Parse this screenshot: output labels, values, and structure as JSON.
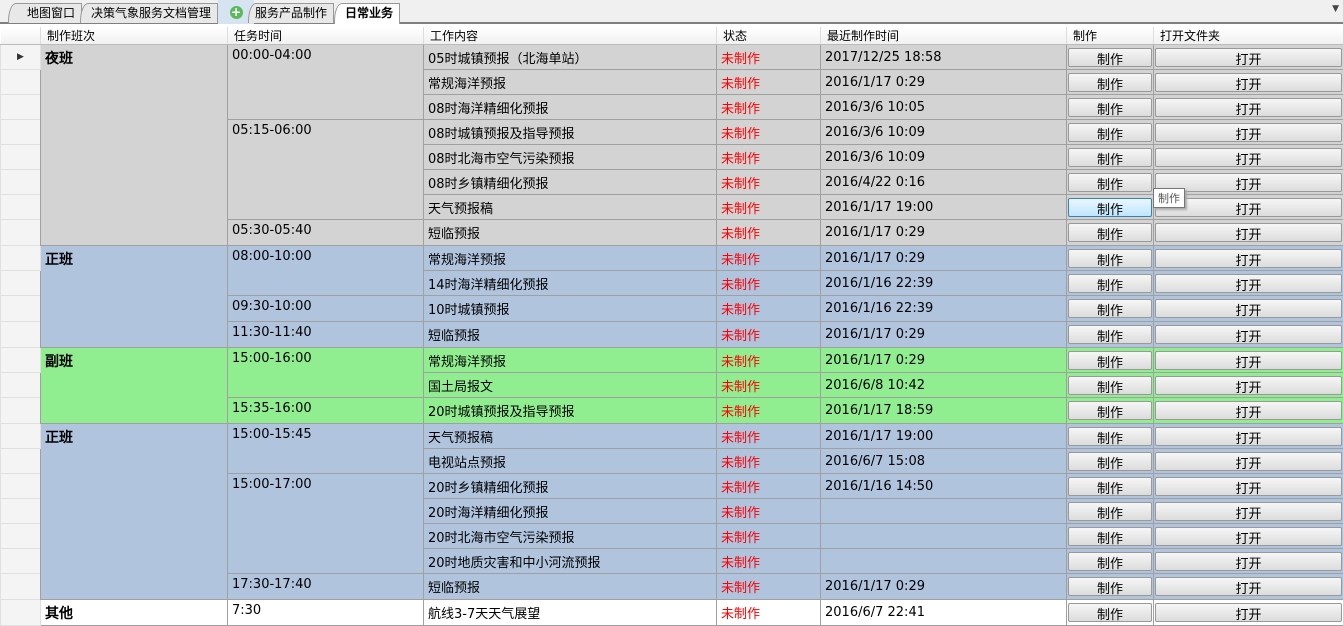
{
  "tabs": [
    {
      "label": "地图窗口"
    },
    {
      "label": "决策气象服务文档管理"
    },
    {
      "label": "服务产品制作"
    },
    {
      "label": "日常业务",
      "active": true
    }
  ],
  "headers": [
    "制作班次",
    "任务时间",
    "工作内容",
    "状态",
    "最近制作时间",
    "制作",
    "打开文件夹"
  ],
  "button_make": "制作",
  "button_open": "打开",
  "tooltip": "制作",
  "colors": {
    "night": "#d3d3d3",
    "day": "#b0c4de",
    "assist": "#90ee90",
    "other": "#ffffff",
    "status": "#ff0000"
  },
  "shifts": [
    {
      "name": "夜班",
      "color": "#d3d3d3",
      "slots": [
        {
          "time": "00:00-04:00",
          "tasks": [
            [
              "05时城镇预报（北海单站）",
              "未制作",
              "2017/12/25 18:58"
            ],
            [
              "常规海洋预报",
              "未制作",
              "2016/1/17 0:29"
            ],
            [
              "08时海洋精细化预报",
              "未制作",
              "2016/3/6 10:05"
            ]
          ]
        },
        {
          "time": "05:15-06:00",
          "tasks": [
            [
              "08时城镇预报及指导预报",
              "未制作",
              "2016/3/6 10:09"
            ],
            [
              "08时北海市空气污染预报",
              "未制作",
              "2016/3/6 10:09"
            ],
            [
              "08时乡镇精细化预报",
              "未制作",
              "2016/4/22 0:16"
            ],
            [
              "天气预报稿",
              "未制作",
              "2016/1/17 19:00"
            ]
          ]
        },
        {
          "time": "05:30-05:40",
          "tasks": [
            [
              "短临预报",
              "未制作",
              "2016/1/17 0:29"
            ]
          ]
        }
      ]
    },
    {
      "name": "正班",
      "color": "#b0c4de",
      "slots": [
        {
          "time": "08:00-10:00",
          "tasks": [
            [
              "常规海洋预报",
              "未制作",
              "2016/1/17 0:29"
            ],
            [
              "14时海洋精细化预报",
              "未制作",
              "2016/1/16 22:39"
            ]
          ]
        },
        {
          "time": "09:30-10:00",
          "tasks": [
            [
              "10时城镇预报",
              "未制作",
              "2016/1/16 22:39"
            ]
          ]
        },
        {
          "time": "11:30-11:40",
          "tasks": [
            [
              "短临预报",
              "未制作",
              "2016/1/17 0:29"
            ]
          ]
        }
      ]
    },
    {
      "name": "副班",
      "color": "#90ee90",
      "slots": [
        {
          "time": "15:00-16:00",
          "tasks": [
            [
              "常规海洋预报",
              "未制作",
              "2016/1/17 0:29"
            ],
            [
              "国土局报文",
              "未制作",
              "2016/6/8 10:42"
            ]
          ]
        },
        {
          "time": "15:35-16:00",
          "tasks": [
            [
              "20时城镇预报及指导预报",
              "未制作",
              "2016/1/17 18:59"
            ]
          ]
        }
      ]
    },
    {
      "name": "正班",
      "color": "#b0c4de",
      "slots": [
        {
          "time": "15:00-15:45",
          "tasks": [
            [
              "天气预报稿",
              "未制作",
              "2016/1/17 19:00"
            ],
            [
              "电视站点预报",
              "未制作",
              "2016/6/7 15:08"
            ]
          ]
        },
        {
          "time": "15:00-17:00",
          "tasks": [
            [
              "20时乡镇精细化预报",
              "未制作",
              "2016/1/16 14:50"
            ],
            [
              "20时海洋精细化预报",
              "未制作",
              ""
            ],
            [
              "20时北海市空气污染预报",
              "未制作",
              ""
            ],
            [
              "20时地质灾害和中小河流预报",
              "未制作",
              ""
            ]
          ]
        },
        {
          "time": "17:30-17:40",
          "tasks": [
            [
              "短临预报",
              "未制作",
              "2016/1/17 0:29"
            ]
          ]
        }
      ]
    },
    {
      "name": "其他",
      "color": "#ffffff",
      "slots": [
        {
          "time": "7:30",
          "tasks": [
            [
              "航线3-7天天气展望",
              "未制作",
              "2016/6/7 22:41"
            ]
          ]
        }
      ]
    }
  ]
}
